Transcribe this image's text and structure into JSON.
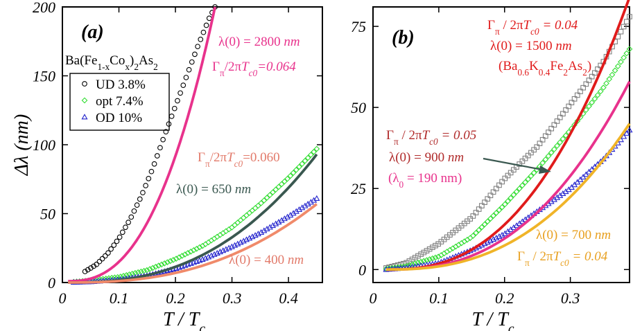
{
  "chart_data": [
    {
      "type": "scatter",
      "panel_label": "(a)",
      "xlabel": "T / T",
      "xlabel_sub": "c",
      "ylabel": "Δλ (nm)",
      "xlim": [
        0,
        0.46
      ],
      "ylim": [
        0,
        200
      ],
      "xticks": [
        "0",
        "0.1",
        "0.2",
        "0.3",
        "0.4"
      ],
      "yticks": [
        "0",
        "50",
        "100",
        "150",
        "200"
      ],
      "legend_title": "Ba(Fe1-xCox)2As2",
      "legend": [
        "UD 3.8%",
        "opt  7.4%",
        "OD 10%"
      ],
      "series": [
        {
          "name": "UD 3.8%",
          "kind": "points",
          "marker": "circle",
          "color": "#000000",
          "x": [
            0.04,
            0.06,
            0.08,
            0.1,
            0.12,
            0.14,
            0.16,
            0.18,
            0.2,
            0.22,
            0.24,
            0.26,
            0.27
          ],
          "y": [
            8,
            13,
            21,
            32,
            46,
            63,
            83,
            106,
            128,
            150,
            172,
            192,
            200
          ]
        },
        {
          "name": "opt  7.4%",
          "kind": "points",
          "marker": "diamond",
          "color": "#33dd33",
          "x": [
            0.02,
            0.05,
            0.1,
            0.15,
            0.2,
            0.25,
            0.3,
            0.35,
            0.4,
            0.45
          ],
          "y": [
            0.5,
            1.5,
            4,
            9,
            17,
            27,
            40,
            57,
            76,
            97
          ]
        },
        {
          "name": "OD 10%",
          "kind": "points",
          "marker": "triangle",
          "color": "#2222cc",
          "x": [
            0.02,
            0.05,
            0.1,
            0.15,
            0.2,
            0.25,
            0.3,
            0.35,
            0.4,
            0.45
          ],
          "y": [
            0.2,
            0.5,
            2,
            5,
            10,
            17,
            26,
            36,
            48,
            61
          ]
        },
        {
          "kind": "fit",
          "color": "#e8328c",
          "x": [
            0.01,
            0.27
          ],
          "y": [
            1,
            200
          ]
        },
        {
          "kind": "fit",
          "color": "#3a5850",
          "x": [
            0.01,
            0.45
          ],
          "y": [
            0,
            93
          ]
        },
        {
          "kind": "fit",
          "color": "#f08a6a",
          "x": [
            0.01,
            0.45
          ],
          "y": [
            0,
            57
          ]
        }
      ],
      "annotations": [
        {
          "text": "λ(0) = 2800 nm",
          "color": "#e8328c"
        },
        {
          "text": "Γπ/2πTc0=0.064",
          "color": "#e8328c"
        },
        {
          "text": "Γπ/2πTc0=0.060",
          "color": "#e27a6a"
        },
        {
          "text": "λ(0) = 650 nm",
          "color": "#3a5850"
        },
        {
          "text": "λ(0) = 400 nm",
          "color": "#e27a6a"
        }
      ]
    },
    {
      "type": "scatter",
      "panel_label": "(b)",
      "xlabel": "T / T",
      "xlabel_sub": "c",
      "xlim": [
        0,
        0.39
      ],
      "ylim": [
        -4,
        81
      ],
      "xticks": [
        "0",
        "0.1",
        "0.2",
        "0.3"
      ],
      "yticks": [
        "0",
        "25",
        "50",
        "75"
      ],
      "series": [
        {
          "name": "(Ba0.6K0.4Fe2As2)",
          "kind": "points",
          "marker": "square",
          "color": "#808080",
          "x": [
            0.02,
            0.05,
            0.1,
            0.15,
            0.2,
            0.25,
            0.3,
            0.35,
            0.39
          ],
          "y": [
            0.5,
            2,
            8,
            16,
            28,
            38,
            51,
            64,
            78
          ]
        },
        {
          "kind": "points",
          "marker": "diamond",
          "color": "#33dd33",
          "x": [
            0.02,
            0.05,
            0.1,
            0.15,
            0.2,
            0.25,
            0.3,
            0.35,
            0.39
          ],
          "y": [
            0.2,
            1,
            4,
            10,
            20,
            31,
            43,
            56,
            68
          ]
        },
        {
          "kind": "points",
          "marker": "triangle",
          "color": "#2222cc",
          "x": [
            0.02,
            0.05,
            0.1,
            0.15,
            0.2,
            0.25,
            0.3,
            0.35,
            0.39
          ],
          "y": [
            0,
            0.5,
            2,
            6,
            11,
            18,
            25,
            34,
            43
          ]
        },
        {
          "kind": "fit",
          "color": "#e01b1b",
          "x": [
            0.02,
            0.39
          ],
          "y": [
            0,
            84
          ]
        },
        {
          "kind": "fit",
          "color": "#e8328c",
          "x": [
            0.02,
            0.39
          ],
          "y": [
            0,
            58
          ]
        },
        {
          "kind": "fit",
          "color": "#f0b428",
          "x": [
            0.02,
            0.39
          ],
          "y": [
            0,
            45
          ]
        }
      ],
      "annotations": [
        {
          "text": "Γπ / 2πTc0 = 0.04",
          "color": "#e01b1b"
        },
        {
          "text": "λ(0) = 1500 nm",
          "color": "#e01b1b"
        },
        {
          "text": "(Ba0.6K0.4Fe2As2)",
          "color": "#e01b1b"
        },
        {
          "text": "Γπ / 2πTc0 = 0.05",
          "color": "#b02a2a"
        },
        {
          "text": "λ(0) = 900 nm",
          "color": "#b02a2a"
        },
        {
          "text": "(λ0 = 190 nm)",
          "color": "#e8328c"
        },
        {
          "text": "λ(0) = 700 nm",
          "color": "#e8a020"
        },
        {
          "text": "Γπ / 2πTc0 = 0.04",
          "color": "#e8a020"
        }
      ]
    }
  ]
}
